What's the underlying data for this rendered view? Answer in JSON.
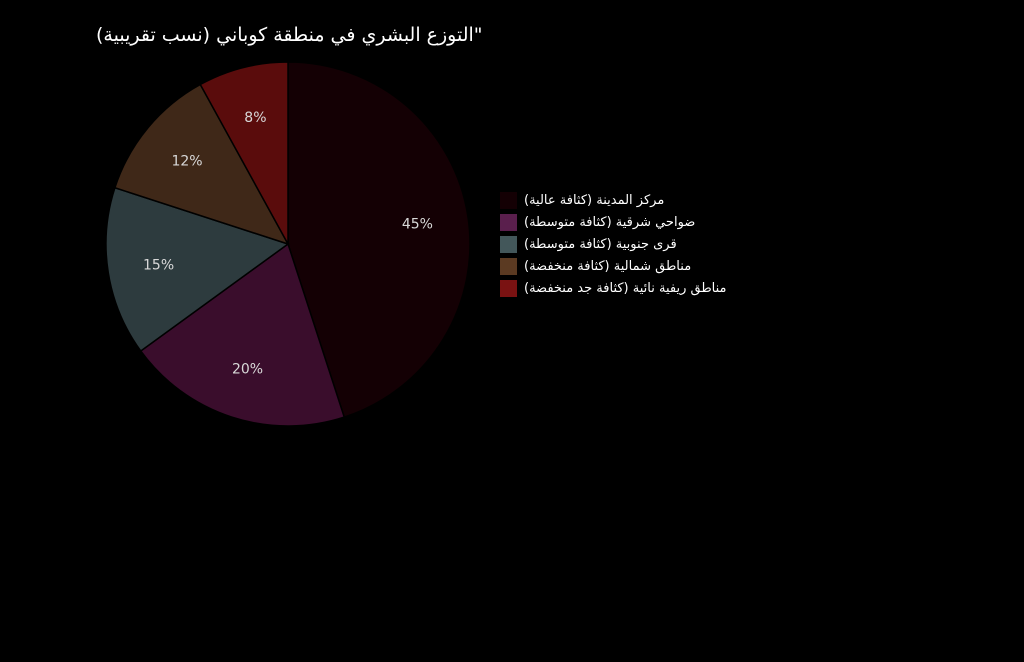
{
  "chart_data": {
    "type": "pie",
    "title": "\"التوزع البشري في منطقة كوباني (نسب تقريبية)",
    "categories": [
      "مركز المدينة (كثافة عالية)",
      "ضواحي شرقية (كثافة متوسطة)",
      "قرى جنوبية (كثافة متوسطة)",
      "مناطق شمالية (كثافة منخفضة)",
      "مناطق ريفية نائية (كثافة جد منخفضة)"
    ],
    "values": [
      45,
      20,
      15,
      12,
      8
    ],
    "value_labels": [
      "45%",
      "20%",
      "15%",
      "12%",
      "8%"
    ],
    "colors": [
      "#140004",
      "#3a0d2c",
      "#2d3b3e",
      "#3f2818",
      "#5a0c0c"
    ],
    "legend_swatch_colors": [
      "#140004",
      "#5a1f4d",
      "#43575a",
      "#5b3a22",
      "#7a1212"
    ],
    "start_angle": "12 o'clock",
    "direction": "clockwise",
    "legend_position": "right"
  }
}
